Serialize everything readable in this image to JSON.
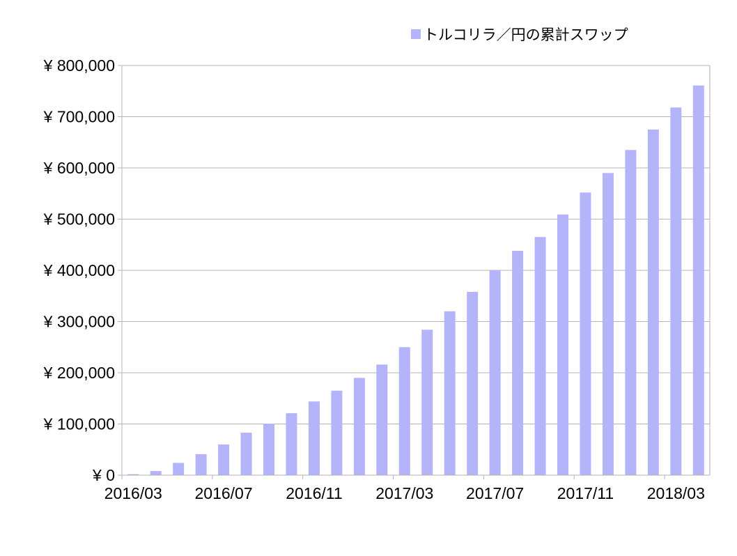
{
  "chart_data": {
    "type": "bar",
    "title": "",
    "xlabel": "",
    "ylabel": "",
    "legend": {
      "position": "top-right",
      "entries": [
        "トルコリラ／円の累計スワップ"
      ]
    },
    "series_color": "#b4b4fa",
    "grid": true,
    "ylim": [
      0,
      800000
    ],
    "yticks": [
      0,
      100000,
      200000,
      300000,
      400000,
      500000,
      600000,
      700000,
      800000
    ],
    "ytick_labels": [
      "¥ 0",
      "¥ 100,000",
      "¥ 200,000",
      "¥ 300,000",
      "¥ 400,000",
      "¥ 500,000",
      "¥ 600,000",
      "¥ 700,000",
      "¥ 800,000"
    ],
    "categories": [
      "2016/03",
      "2016/04",
      "2016/05",
      "2016/06",
      "2016/07",
      "2016/08",
      "2016/09",
      "2016/10",
      "2016/11",
      "2016/12",
      "2017/01",
      "2017/02",
      "2017/03",
      "2017/04",
      "2017/05",
      "2017/06",
      "2017/07",
      "2017/08",
      "2017/09",
      "2017/10",
      "2017/11",
      "2017/12",
      "2018/01",
      "2018/02",
      "2018/03",
      "2018/04"
    ],
    "xtick_labels": [
      "2016/03",
      "2016/07",
      "2016/11",
      "2017/03",
      "2017/07",
      "2017/11",
      "2018/03"
    ],
    "series": [
      {
        "name": "トルコリラ／円の累計スワップ",
        "values": [
          2000,
          8000,
          24000,
          41000,
          60000,
          83000,
          100000,
          121000,
          144000,
          165000,
          190000,
          216000,
          250000,
          284000,
          320000,
          358000,
          400000,
          438000,
          465000,
          509000,
          552000,
          590000,
          635000,
          675000,
          718000,
          761000
        ]
      }
    ]
  }
}
